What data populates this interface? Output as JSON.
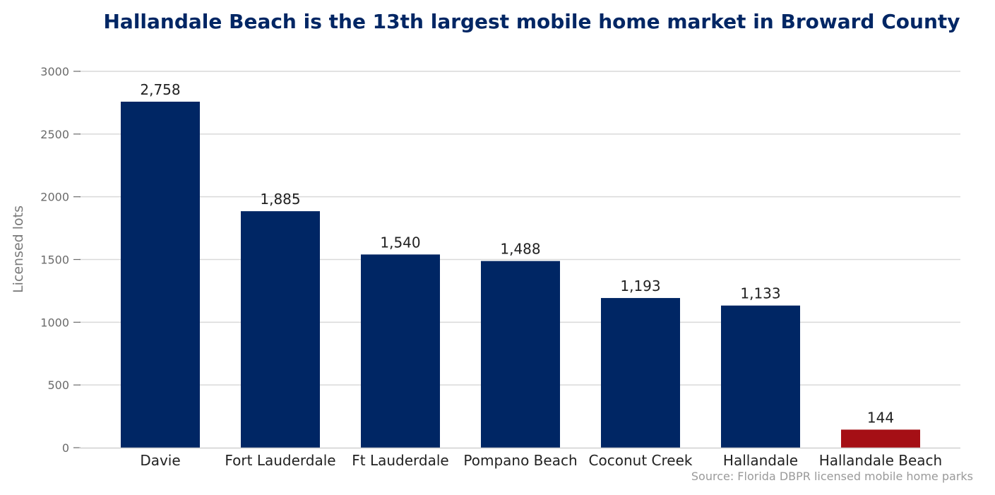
{
  "chart_data": {
    "type": "bar",
    "title": "Hallandale Beach is the 13th largest mobile home market in Broward County",
    "ylabel": "Licensed lots",
    "xlabel": "",
    "source": "Source: Florida DBPR licensed mobile home parks",
    "categories": [
      "Davie",
      "Fort Lauderdale",
      "Ft Lauderdale",
      "Pompano Beach",
      "Coconut Creek",
      "Hallandale",
      "Hallandale Beach"
    ],
    "values": [
      2758,
      1885,
      1540,
      1488,
      1193,
      1133,
      144
    ],
    "value_labels": [
      "2,758",
      "1,885",
      "1,540",
      "1,488",
      "1,193",
      "1,133",
      "144"
    ],
    "ylim": [
      0,
      3000
    ],
    "yticks": [
      0,
      500,
      1000,
      1500,
      2000,
      2500,
      3000
    ],
    "grid": true,
    "colors": {
      "default_bar": "#002664",
      "highlight_bar": "#a50f15",
      "title": "#002664",
      "grid": "#d9d9d9"
    },
    "highlight_category": "Hallandale Beach"
  }
}
